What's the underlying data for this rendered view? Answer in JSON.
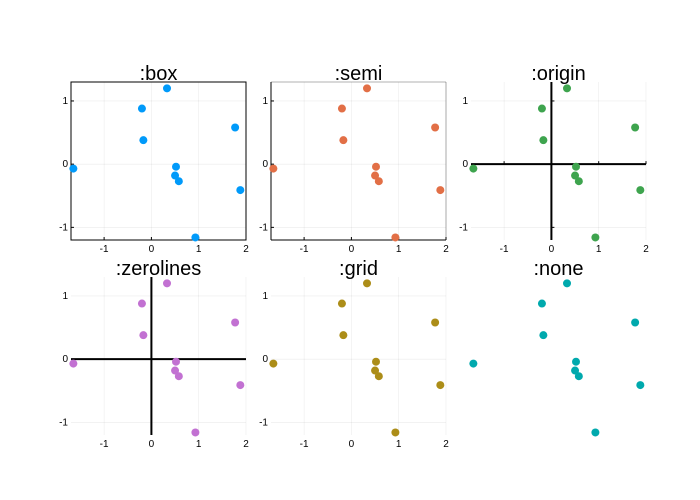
{
  "chart_data": [
    {
      "type": "scatter",
      "title": ":box",
      "framestyle": "box",
      "grid": true,
      "color": "#009AFA",
      "xlim": [
        -1.7,
        2.0
      ],
      "ylim": [
        -1.2,
        1.3
      ],
      "xticks": [
        -1,
        0,
        1,
        2
      ],
      "yticks": [
        -1,
        0,
        1
      ],
      "x": [
        -1.65,
        -0.2,
        -0.17,
        0.33,
        0.52,
        0.5,
        0.58,
        0.93,
        1.77,
        1.88
      ],
      "y": [
        -0.07,
        0.88,
        0.38,
        1.2,
        -0.04,
        -0.18,
        -0.27,
        -1.16,
        0.58,
        -0.41
      ]
    },
    {
      "type": "scatter",
      "title": ":semi",
      "framestyle": "semi",
      "grid": true,
      "color": "#E26F46",
      "xlim": [
        -1.7,
        2.0
      ],
      "ylim": [
        -1.2,
        1.3
      ],
      "xticks": [
        -1,
        0,
        1,
        2
      ],
      "yticks": [
        -1,
        0,
        1
      ],
      "x": [
        -1.65,
        -0.2,
        -0.17,
        0.33,
        0.52,
        0.5,
        0.58,
        0.93,
        1.77,
        1.88
      ],
      "y": [
        -0.07,
        0.88,
        0.38,
        1.2,
        -0.04,
        -0.18,
        -0.27,
        -1.16,
        0.58,
        -0.41
      ]
    },
    {
      "type": "scatter",
      "title": ":origin",
      "framestyle": "origin",
      "grid": true,
      "color": "#3EA44E",
      "xlim": [
        -1.7,
        2.0
      ],
      "ylim": [
        -1.2,
        1.3
      ],
      "xticks": [
        -1,
        0,
        1,
        2
      ],
      "yticks": [
        -1,
        0,
        1
      ],
      "x": [
        -1.65,
        -0.2,
        -0.17,
        0.33,
        0.52,
        0.5,
        0.58,
        0.93,
        1.77,
        1.88
      ],
      "y": [
        -0.07,
        0.88,
        0.38,
        1.2,
        -0.04,
        -0.18,
        -0.27,
        -1.16,
        0.58,
        -0.41
      ]
    },
    {
      "type": "scatter",
      "title": ":zerolines",
      "framestyle": "zerolines",
      "grid": true,
      "color": "#C271D2",
      "xlim": [
        -1.7,
        2.0
      ],
      "ylim": [
        -1.2,
        1.3
      ],
      "xticks": [
        -1,
        0,
        1,
        2
      ],
      "yticks": [
        -1,
        0,
        1
      ],
      "x": [
        -1.65,
        -0.2,
        -0.17,
        0.33,
        0.52,
        0.5,
        0.58,
        0.93,
        1.77,
        1.88
      ],
      "y": [
        -0.07,
        0.88,
        0.38,
        1.2,
        -0.04,
        -0.18,
        -0.27,
        -1.16,
        0.58,
        -0.41
      ]
    },
    {
      "type": "scatter",
      "title": ":grid",
      "framestyle": "grid",
      "grid": true,
      "color": "#AC8D18",
      "xlim": [
        -1.7,
        2.0
      ],
      "ylim": [
        -1.2,
        1.3
      ],
      "xticks": [
        -1,
        0,
        1,
        2
      ],
      "yticks": [
        -1,
        0,
        1
      ],
      "x": [
        -1.65,
        -0.2,
        -0.17,
        0.33,
        0.52,
        0.5,
        0.58,
        0.93,
        1.77,
        1.88
      ],
      "y": [
        -0.07,
        0.88,
        0.38,
        1.2,
        -0.04,
        -0.18,
        -0.27,
        -1.16,
        0.58,
        -0.41
      ]
    },
    {
      "type": "scatter",
      "title": ":none",
      "framestyle": "none",
      "grid": false,
      "color": "#00A9AD",
      "xlim": [
        -1.7,
        2.0
      ],
      "ylim": [
        -1.2,
        1.3
      ],
      "xticks": [],
      "yticks": [],
      "x": [
        -1.65,
        -0.2,
        -0.17,
        0.33,
        0.52,
        0.5,
        0.58,
        0.93,
        1.77,
        1.88
      ],
      "y": [
        -0.07,
        0.88,
        0.38,
        1.2,
        -0.04,
        -0.18,
        -0.27,
        -1.16,
        0.58,
        -0.41
      ]
    }
  ]
}
